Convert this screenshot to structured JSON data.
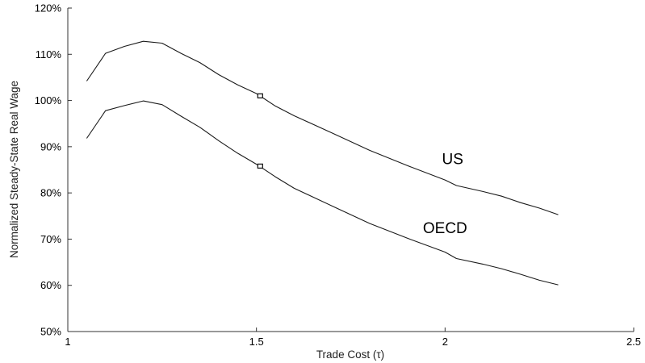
{
  "chart_data": {
    "type": "line",
    "xlabel": "Trade Cost (τ)",
    "ylabel": "Normalized Steady-State Real Wage",
    "xlim": [
      1,
      2.5
    ],
    "ylim": [
      50,
      120
    ],
    "xticks": [
      1,
      1.5,
      2,
      2.5
    ],
    "xtick_labels": [
      "1",
      "1.5",
      "2",
      "2.5"
    ],
    "yticks": [
      50,
      60,
      70,
      80,
      90,
      100,
      110,
      120
    ],
    "ytick_labels": [
      "50%",
      "60%",
      "70%",
      "80%",
      "90%",
      "100%",
      "110%",
      "120%"
    ],
    "grid": false,
    "series": [
      {
        "name": "US",
        "x": [
          1.05,
          1.1,
          1.15,
          1.2,
          1.25,
          1.3,
          1.35,
          1.4,
          1.45,
          1.5,
          1.55,
          1.6,
          1.7,
          1.8,
          1.9,
          2.0,
          2.03,
          2.1,
          2.15,
          2.2,
          2.25,
          2.3
        ],
        "y": [
          104.2,
          110.2,
          111.7,
          112.8,
          112.4,
          110.2,
          108.2,
          105.6,
          103.4,
          101.5,
          98.8,
          96.7,
          93.0,
          89.2,
          85.9,
          82.8,
          81.6,
          80.3,
          79.3,
          77.9,
          76.7,
          75.3
        ],
        "marker": {
          "x": 1.51,
          "y": 101.0
        }
      },
      {
        "name": "OECD",
        "x": [
          1.05,
          1.1,
          1.15,
          1.2,
          1.25,
          1.3,
          1.35,
          1.4,
          1.45,
          1.5,
          1.55,
          1.6,
          1.7,
          1.8,
          1.9,
          2.0,
          2.03,
          2.1,
          2.15,
          2.2,
          2.25,
          2.3
        ],
        "y": [
          91.8,
          97.8,
          98.9,
          99.9,
          99.1,
          96.6,
          94.2,
          91.3,
          88.6,
          86.2,
          83.5,
          81.0,
          77.2,
          73.4,
          70.2,
          67.2,
          65.8,
          64.6,
          63.6,
          62.4,
          61.1,
          60.1
        ],
        "marker": {
          "x": 1.51,
          "y": 85.8
        }
      }
    ],
    "annotations": [
      {
        "text": "US",
        "x": 2.02,
        "y": 86.2
      },
      {
        "text": "OECD",
        "x": 2.0,
        "y": 71.3
      }
    ],
    "colors": {
      "line": "#1a1a1a",
      "axis": "#333333"
    }
  }
}
